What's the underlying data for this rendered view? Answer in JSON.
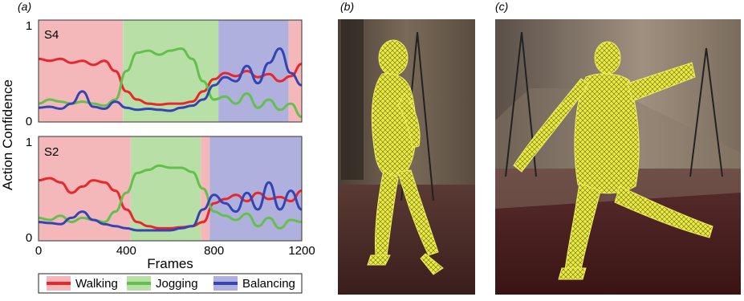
{
  "panel_labels": {
    "a": "(a)",
    "b": "(b)",
    "c": "(c)"
  },
  "colors": {
    "walking": "#e8262c",
    "jogging": "#63c04b",
    "balancing": "#3344b3",
    "walking_bg": "#f4b8bb",
    "jogging_bg": "#b7dfa6",
    "balancing_bg": "#b0b0de"
  },
  "chart_data": [
    {
      "type": "line",
      "title": "S4",
      "xlabel": "Frames",
      "ylabel": "Action Confidence",
      "xlim": [
        0,
        1200
      ],
      "ylim": [
        0,
        1
      ],
      "y_ticks": [
        "0",
        "1"
      ],
      "x_ticks": [],
      "background_segments": [
        {
          "label": "Walking",
          "from": 0,
          "to": 385
        },
        {
          "label": "Jogging",
          "from": 385,
          "to": 820
        },
        {
          "label": "Balancing",
          "from": 820,
          "to": 1140
        },
        {
          "label": "Walking",
          "from": 1140,
          "to": 1200
        }
      ],
      "x": [
        0,
        50,
        100,
        150,
        200,
        250,
        300,
        350,
        400,
        450,
        500,
        550,
        600,
        650,
        700,
        750,
        800,
        850,
        900,
        950,
        1000,
        1050,
        1100,
        1150,
        1200
      ],
      "series": [
        {
          "name": "Walking",
          "values": [
            0.62,
            0.6,
            0.62,
            0.58,
            0.6,
            0.56,
            0.6,
            0.5,
            0.3,
            0.22,
            0.18,
            0.17,
            0.18,
            0.18,
            0.2,
            0.3,
            0.42,
            0.48,
            0.45,
            0.5,
            0.44,
            0.47,
            0.4,
            0.45,
            0.57
          ]
        },
        {
          "name": "Jogging",
          "values": [
            0.18,
            0.22,
            0.2,
            0.18,
            0.2,
            0.18,
            0.16,
            0.22,
            0.5,
            0.68,
            0.7,
            0.66,
            0.7,
            0.72,
            0.62,
            0.4,
            0.22,
            0.25,
            0.18,
            0.28,
            0.14,
            0.22,
            0.12,
            0.18,
            0.05
          ]
        },
        {
          "name": "Balancing",
          "values": [
            0.14,
            0.15,
            0.13,
            0.18,
            0.3,
            0.15,
            0.13,
            0.2,
            0.14,
            0.12,
            0.13,
            0.12,
            0.11,
            0.14,
            0.16,
            0.22,
            0.36,
            0.44,
            0.4,
            0.55,
            0.38,
            0.58,
            0.72,
            0.48,
            0.36
          ]
        }
      ]
    },
    {
      "type": "line",
      "title": "S2",
      "xlabel": "Frames",
      "ylabel": "Action Confidence",
      "xlim": [
        0,
        1200
      ],
      "ylim": [
        0,
        1
      ],
      "y_ticks": [
        "0",
        "1"
      ],
      "x_ticks": [
        "0",
        "400",
        "800",
        "1200"
      ],
      "background_segments": [
        {
          "label": "Walking",
          "from": 0,
          "to": 420
        },
        {
          "label": "Jogging",
          "from": 420,
          "to": 740
        },
        {
          "label": "Walking",
          "from": 740,
          "to": 780
        },
        {
          "label": "Balancing",
          "from": 780,
          "to": 1200
        }
      ],
      "x": [
        0,
        50,
        100,
        150,
        200,
        250,
        300,
        350,
        400,
        450,
        500,
        550,
        600,
        650,
        700,
        750,
        800,
        850,
        900,
        950,
        1000,
        1050,
        1100,
        1150,
        1200
      ],
      "series": [
        {
          "name": "Walking",
          "values": [
            0.58,
            0.6,
            0.56,
            0.46,
            0.52,
            0.58,
            0.56,
            0.48,
            0.3,
            0.18,
            0.14,
            0.12,
            0.12,
            0.13,
            0.14,
            0.18,
            0.36,
            0.4,
            0.44,
            0.38,
            0.46,
            0.4,
            0.42,
            0.38,
            0.48
          ]
        },
        {
          "name": "Jogging",
          "values": [
            0.22,
            0.2,
            0.24,
            0.18,
            0.22,
            0.2,
            0.18,
            0.28,
            0.46,
            0.65,
            0.68,
            0.72,
            0.7,
            0.7,
            0.66,
            0.5,
            0.28,
            0.24,
            0.2,
            0.26,
            0.14,
            0.22,
            0.12,
            0.2,
            0.18
          ]
        },
        {
          "name": "Balancing",
          "values": [
            0.18,
            0.17,
            0.16,
            0.22,
            0.28,
            0.2,
            0.16,
            0.14,
            0.12,
            0.1,
            0.1,
            0.1,
            0.1,
            0.12,
            0.14,
            0.3,
            0.44,
            0.36,
            0.28,
            0.46,
            0.3,
            0.56,
            0.3,
            0.48,
            0.3
          ]
        }
      ]
    }
  ],
  "legend": [
    {
      "label": "Walking",
      "color_key": "walking"
    },
    {
      "label": "Jogging",
      "color_key": "jogging"
    },
    {
      "label": "Balancing",
      "color_key": "balancing"
    }
  ]
}
